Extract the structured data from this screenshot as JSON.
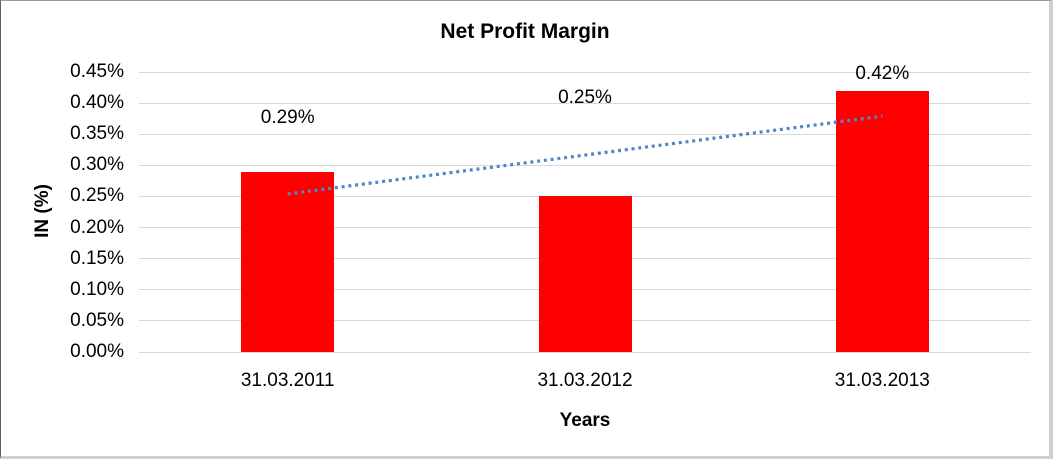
{
  "chart_data": {
    "type": "bar",
    "title": "Net Profit Margin",
    "xlabel": "Years",
    "ylabel": "IN (%)",
    "categories": [
      "31.03.2011",
      "31.03.2012",
      "31.03.2013"
    ],
    "values": [
      0.29,
      0.25,
      0.42
    ],
    "data_labels": [
      "0.29%",
      "0.25%",
      "0.42%"
    ],
    "data_label_y_positions": [
      0.376,
      0.408,
      0.447
    ],
    "y_ticks": [
      "0.00%",
      "0.05%",
      "0.10%",
      "0.15%",
      "0.20%",
      "0.25%",
      "0.30%",
      "0.35%",
      "0.40%",
      "0.45%"
    ],
    "y_tick_values": [
      0,
      0.05,
      0.1,
      0.15,
      0.2,
      0.25,
      0.3,
      0.35,
      0.4,
      0.45
    ],
    "ylim": [
      0,
      0.45
    ],
    "unit": "%",
    "grid": "horizontal",
    "legend": "none",
    "bar_color": "#ff0000",
    "gridline_color": "#d9d9d9",
    "text_color": "#000000",
    "background_color": "#ffffff",
    "trendline": {
      "type": "linear",
      "style": "dotted",
      "color": "#4f86c6",
      "y_start": 0.254,
      "y_end": 0.379,
      "from_category": 0,
      "to_category": 2
    }
  }
}
